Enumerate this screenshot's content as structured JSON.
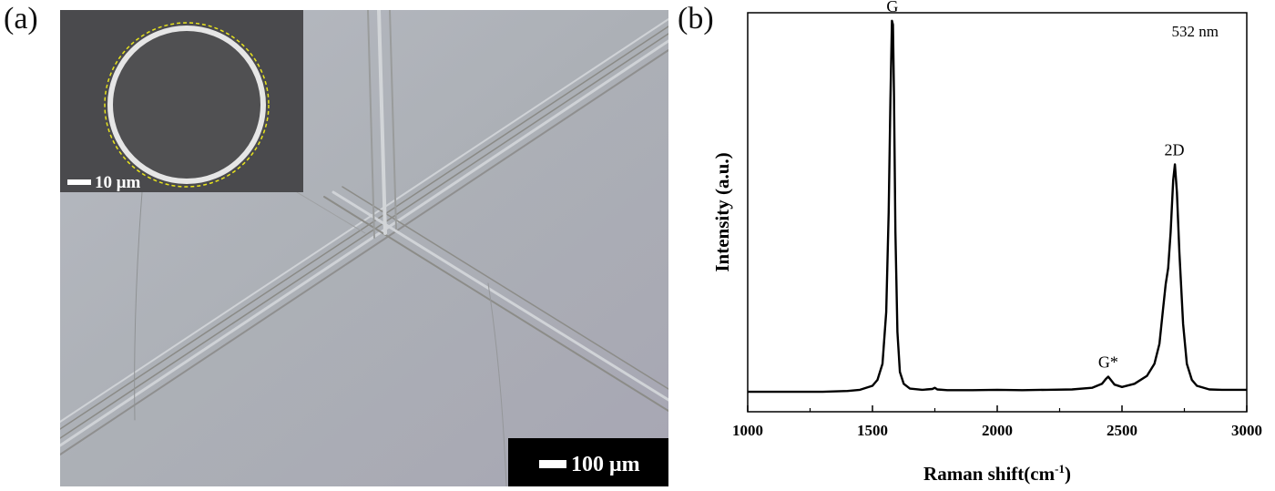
{
  "panels": {
    "a_label": "(a)",
    "b_label": "(b)"
  },
  "micrograph": {
    "scale_bar_label": "100 μm",
    "inset_scale_bar_label": "10 μm",
    "background_color": "#a9acb4",
    "inset_background_color": "#4a4a4d",
    "highlight_color": "#e8e41c"
  },
  "chart_data": {
    "type": "line",
    "xlabel": "Raman shift(cm-1)",
    "xlabel_main": "Raman shift(cm",
    "xlabel_sup": "-1",
    "xlabel_close": ")",
    "ylabel": "Intensity (a.u.)",
    "xlim": [
      1000,
      3000
    ],
    "ylim": [
      0,
      1.0
    ],
    "xticks": [
      1000,
      1500,
      2000,
      2500,
      3000
    ],
    "xtick_labels": [
      "1000",
      "1500",
      "2000",
      "2500",
      "3000"
    ],
    "annotation": "532 nm",
    "peak_labels": [
      {
        "text": "G",
        "x": 1580
      },
      {
        "text": "G*",
        "x": 2445
      },
      {
        "text": "2D",
        "x": 2710
      }
    ],
    "series": [
      {
        "x": [
          1000,
          1100,
          1200,
          1300,
          1400,
          1450,
          1500,
          1520,
          1540,
          1555,
          1565,
          1572,
          1578,
          1582,
          1586,
          1592,
          1600,
          1610,
          1625,
          1650,
          1700,
          1740,
          1750,
          1760,
          1800,
          1900,
          2000,
          2100,
          2200,
          2300,
          2380,
          2420,
          2435,
          2445,
          2455,
          2470,
          2500,
          2550,
          2600,
          2630,
          2650,
          2665,
          2675,
          2685,
          2695,
          2705,
          2712,
          2720,
          2730,
          2745,
          2760,
          2780,
          2800,
          2850,
          2900,
          3000
        ],
        "y": [
          0.05,
          0.05,
          0.05,
          0.05,
          0.052,
          0.055,
          0.065,
          0.08,
          0.12,
          0.25,
          0.5,
          0.78,
          0.98,
          0.97,
          0.8,
          0.45,
          0.2,
          0.1,
          0.07,
          0.058,
          0.055,
          0.057,
          0.06,
          0.056,
          0.054,
          0.054,
          0.055,
          0.054,
          0.055,
          0.056,
          0.06,
          0.07,
          0.082,
          0.088,
          0.08,
          0.068,
          0.062,
          0.07,
          0.09,
          0.12,
          0.17,
          0.26,
          0.32,
          0.36,
          0.45,
          0.58,
          0.62,
          0.55,
          0.4,
          0.22,
          0.12,
          0.08,
          0.065,
          0.056,
          0.055,
          0.055
        ]
      }
    ],
    "grid": false
  }
}
